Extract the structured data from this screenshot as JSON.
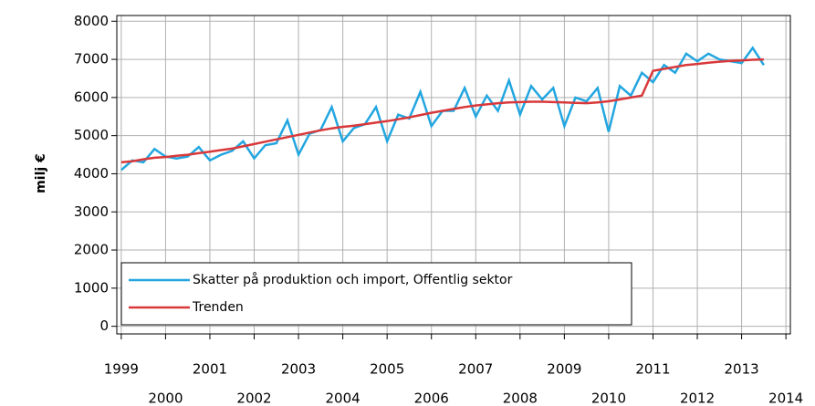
{
  "chart_data": {
    "type": "line",
    "y_label": "milj €",
    "x": [
      1999,
      1999.25,
      1999.5,
      1999.75,
      2000,
      2000.25,
      2000.5,
      2000.75,
      2001,
      2001.25,
      2001.5,
      2001.75,
      2002,
      2002.25,
      2002.5,
      2002.75,
      2003,
      2003.25,
      2003.5,
      2003.75,
      2004,
      2004.25,
      2004.5,
      2004.75,
      2005,
      2005.25,
      2005.5,
      2005.75,
      2006,
      2006.25,
      2006.5,
      2006.75,
      2007,
      2007.25,
      2007.5,
      2007.75,
      2008,
      2008.25,
      2008.5,
      2008.75,
      2009,
      2009.25,
      2009.5,
      2009.75,
      2010,
      2010.25,
      2010.5,
      2010.75,
      2011,
      2011.25,
      2011.5,
      2011.75,
      2012,
      2012.25,
      2012.5,
      2012.75,
      2013,
      2013.25,
      2013.5
    ],
    "series": [
      {
        "name": "Skatter på produktion och import, Offentlig sektor",
        "color": "#22a6e0",
        "values": [
          4100,
          4350,
          4300,
          4650,
          4450,
          4400,
          4450,
          4700,
          4350,
          4500,
          4600,
          4850,
          4400,
          4750,
          4800,
          5400,
          4500,
          5050,
          5150,
          5750,
          4850,
          5200,
          5300,
          5750,
          4850,
          5550,
          5450,
          6150,
          5250,
          5650,
          5650,
          6250,
          5500,
          6050,
          5650,
          6450,
          5550,
          6300,
          5950,
          6250,
          5250,
          6000,
          5900,
          6250,
          5100,
          6300,
          6050,
          6650,
          6400,
          6850,
          6650,
          7150,
          6950,
          7150,
          7000,
          6950,
          6900,
          7300,
          6850
        ]
      },
      {
        "name": "Trenden",
        "color": "#d9383a",
        "values": [
          4300,
          4330,
          4380,
          4420,
          4440,
          4470,
          4500,
          4540,
          4580,
          4620,
          4660,
          4720,
          4780,
          4840,
          4900,
          4960,
          5020,
          5080,
          5140,
          5190,
          5230,
          5260,
          5300,
          5340,
          5380,
          5430,
          5480,
          5540,
          5600,
          5650,
          5700,
          5750,
          5790,
          5820,
          5850,
          5870,
          5880,
          5890,
          5890,
          5880,
          5870,
          5860,
          5850,
          5870,
          5900,
          5950,
          6000,
          6050,
          6700,
          6750,
          6800,
          6850,
          6880,
          6910,
          6940,
          6960,
          6970,
          6990,
          7000
        ]
      }
    ],
    "xlim": [
      1998.9,
      2014.1
    ],
    "xticks": [
      1999,
      2000,
      2001,
      2002,
      2003,
      2004,
      2005,
      2006,
      2007,
      2008,
      2009,
      2010,
      2011,
      2012,
      2013,
      2014
    ],
    "ylim": [
      -200,
      8150
    ],
    "yticks": [
      0,
      1000,
      2000,
      3000,
      4000,
      5000,
      6000,
      7000,
      8000
    ],
    "grid": true,
    "legend": "lower left"
  }
}
